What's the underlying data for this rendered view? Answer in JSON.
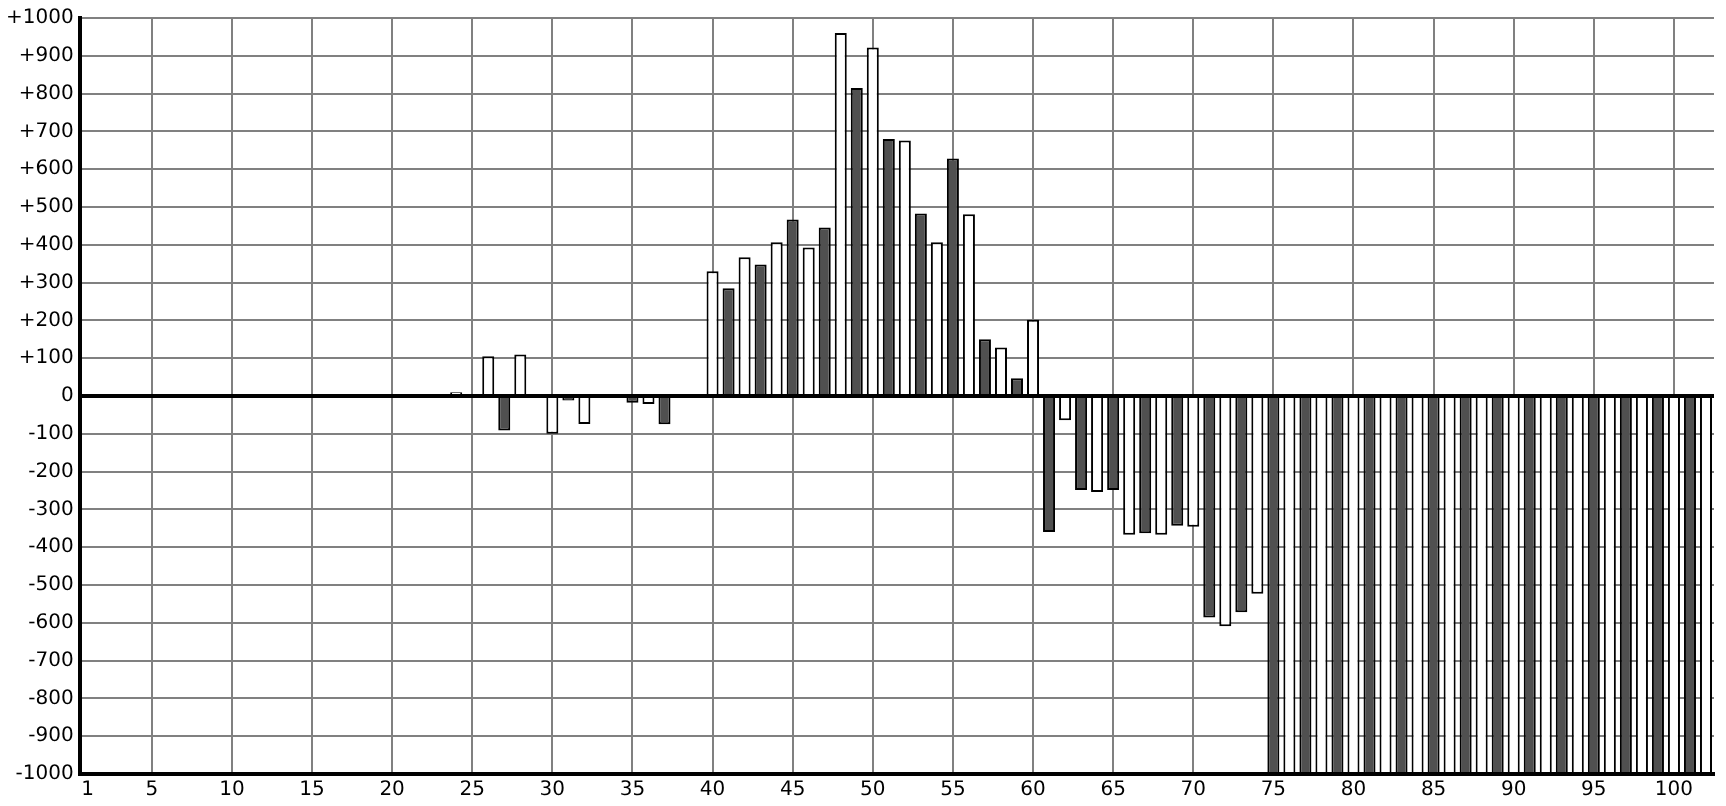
{
  "chart_data": {
    "type": "bar",
    "categories": [
      "1",
      null,
      null,
      null,
      "5",
      null,
      null,
      null,
      null,
      "10",
      null,
      null,
      null,
      null,
      "15",
      null,
      null,
      null,
      null,
      "20",
      null,
      null,
      null,
      null,
      "25",
      null,
      null,
      null,
      null,
      "30",
      null,
      null,
      null,
      null,
      "35",
      null,
      null,
      null,
      null,
      "40",
      null,
      null,
      null,
      null,
      "45",
      null,
      null,
      null,
      null,
      "50",
      null,
      null,
      null,
      null,
      "55",
      null,
      null,
      null,
      null,
      "60",
      null,
      null,
      null,
      null,
      "65",
      null,
      null,
      null,
      null,
      "70",
      null,
      null,
      null,
      null,
      "75",
      null,
      null,
      null,
      null,
      "80",
      null,
      null,
      null,
      null,
      "85",
      null,
      null,
      null,
      null,
      "90",
      null,
      null,
      null,
      null,
      "95",
      null,
      null,
      null,
      null,
      "100",
      null,
      null
    ],
    "values": [
      0,
      0,
      0,
      0,
      0,
      0,
      0,
      0,
      0,
      0,
      0,
      0,
      0,
      0,
      0,
      0,
      0,
      0,
      0,
      0,
      0,
      0,
      0,
      10,
      5,
      105,
      -91,
      110,
      5,
      -100,
      -12,
      -74,
      0,
      0,
      -18,
      -21,
      -75,
      0,
      0,
      330,
      285,
      367,
      348,
      407,
      467,
      393,
      446,
      960,
      815,
      922,
      680,
      676,
      483,
      407,
      628,
      481,
      150,
      128,
      47,
      202,
      -360,
      -64,
      -249,
      -254,
      -249,
      -367,
      -363,
      -367,
      -343,
      -346,
      -586,
      -609,
      -572,
      -523,
      -1000,
      -1000,
      -1000,
      -1000,
      -1000,
      -1000,
      -1000,
      -1000,
      -1000,
      -1000,
      -1000,
      -1000,
      -1000,
      -1000,
      -1000,
      -1000,
      -1000,
      -1000,
      -1000,
      -1000,
      -1000,
      -1000,
      -1000,
      -1000,
      -1000,
      -1000,
      -1000,
      -1000
    ],
    "colors": [
      "#505050",
      "#ffffff",
      "#505050",
      "#ffffff",
      "#505050",
      "#ffffff",
      "#505050",
      "#ffffff",
      "#505050",
      "#ffffff",
      "#505050",
      "#ffffff",
      "#505050",
      "#ffffff",
      "#505050",
      "#ffffff",
      "#505050",
      "#ffffff",
      "#505050",
      "#ffffff",
      "#505050",
      "#ffffff",
      "#505050",
      "#ffffff",
      "#505050",
      "#ffffff",
      "#505050",
      "#ffffff",
      "#505050",
      "#ffffff",
      "#505050",
      "#ffffff",
      "#505050",
      "#ffffff",
      "#505050",
      "#ffffff",
      "#505050",
      "#ffffff",
      "#505050",
      "#ffffff",
      "#505050",
      "#ffffff",
      "#505050",
      "#ffffff",
      "#505050",
      "#ffffff",
      "#505050",
      "#ffffff",
      "#505050",
      "#ffffff",
      "#505050",
      "#ffffff",
      "#505050",
      "#ffffff",
      "#505050",
      "#ffffff",
      "#505050",
      "#ffffff",
      "#505050",
      "#ffffff",
      "#505050",
      "#ffffff",
      "#505050",
      "#ffffff",
      "#505050",
      "#ffffff",
      "#505050",
      "#ffffff",
      "#505050",
      "#ffffff",
      "#505050",
      "#ffffff",
      "#505050",
      "#ffffff",
      "#505050",
      "#ffffff",
      "#505050",
      "#ffffff",
      "#505050",
      "#ffffff",
      "#505050",
      "#ffffff",
      "#505050",
      "#ffffff",
      "#505050",
      "#ffffff",
      "#505050",
      "#ffffff",
      "#505050",
      "#ffffff",
      "#505050",
      "#ffffff",
      "#505050",
      "#ffffff",
      "#505050",
      "#ffffff",
      "#505050",
      "#ffffff",
      "#505050",
      "#ffffff",
      "#505050",
      "#ffffff"
    ],
    "ylim": [
      -1000,
      1000
    ],
    "yticks": [
      {
        "value": -1000,
        "label": "-1000"
      },
      {
        "value": -900,
        "label": "-900"
      },
      {
        "value": -800,
        "label": "-800"
      },
      {
        "value": -700,
        "label": "-700"
      },
      {
        "value": -600,
        "label": "-600"
      },
      {
        "value": -500,
        "label": "-500"
      },
      {
        "value": -400,
        "label": "-400"
      },
      {
        "value": -300,
        "label": "-300"
      },
      {
        "value": -200,
        "label": "-200"
      },
      {
        "value": -100,
        "label": "-100"
      },
      {
        "value": 0,
        "label": "0"
      },
      {
        "value": 100,
        "label": "+100"
      },
      {
        "value": 200,
        "label": "+200"
      },
      {
        "value": 300,
        "label": "+300"
      },
      {
        "value": 400,
        "label": "+400"
      },
      {
        "value": 500,
        "label": "+500"
      },
      {
        "value": 600,
        "label": "+600"
      },
      {
        "value": 700,
        "label": "+700"
      },
      {
        "value": 800,
        "label": "+800"
      },
      {
        "value": 900,
        "label": "+900"
      },
      {
        "value": 1000,
        "label": "+1000"
      }
    ],
    "grid": true,
    "legend": false
  }
}
